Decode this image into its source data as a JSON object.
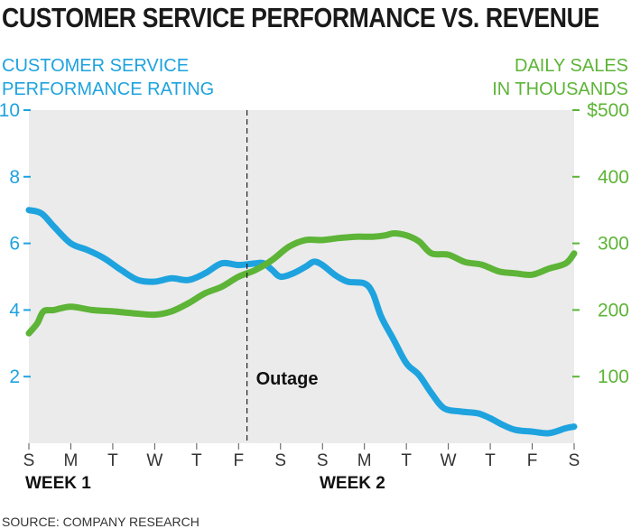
{
  "chart_data": {
    "type": "line",
    "title": "CUSTOMER SERVICE PERFORMANCE VS. REVENUE",
    "source": "SOURCE: COMPANY RESEARCH",
    "x_tick_labels": [
      "S",
      "M",
      "T",
      "W",
      "T",
      "F",
      "S",
      "S",
      "M",
      "T",
      "W",
      "T",
      "F",
      "S"
    ],
    "group_labels": [
      "WEEK 1",
      "WEEK 2"
    ],
    "y_left": {
      "label_lines": [
        "CUSTOMER SERVICE",
        "PERFORMANCE RATING"
      ],
      "range": [
        0,
        10
      ],
      "ticks": [
        2,
        4,
        6,
        8,
        10
      ],
      "tick_labels": [
        "2",
        "4",
        "6",
        "8",
        "10"
      ],
      "color": "#1ea3df"
    },
    "y_right": {
      "label_lines": [
        "DAILY SALES",
        "IN THOUSANDS"
      ],
      "range": [
        0,
        500
      ],
      "ticks": [
        100,
        200,
        300,
        400,
        500
      ],
      "tick_labels": [
        "100",
        "200",
        "300",
        "400",
        "$500"
      ],
      "color": "#5db437"
    },
    "annotation": {
      "text": "Outage",
      "x": 5.2
    },
    "grid": false,
    "series": [
      {
        "axis": "left",
        "color": "#1ea3df",
        "points": [
          [
            0,
            7.0
          ],
          [
            0.3,
            6.9
          ],
          [
            0.6,
            6.5
          ],
          [
            1.0,
            6.0
          ],
          [
            1.4,
            5.8
          ],
          [
            1.8,
            5.55
          ],
          [
            2.2,
            5.2
          ],
          [
            2.6,
            4.9
          ],
          [
            3.0,
            4.85
          ],
          [
            3.4,
            4.95
          ],
          [
            3.8,
            4.9
          ],
          [
            4.2,
            5.1
          ],
          [
            4.6,
            5.4
          ],
          [
            5.0,
            5.35
          ],
          [
            5.4,
            5.4
          ],
          [
            5.6,
            5.4
          ],
          [
            5.8,
            5.2
          ],
          [
            6.0,
            5.0
          ],
          [
            6.3,
            5.1
          ],
          [
            6.6,
            5.3
          ],
          [
            6.8,
            5.45
          ],
          [
            7.0,
            5.35
          ],
          [
            7.3,
            5.05
          ],
          [
            7.6,
            4.85
          ],
          [
            8.0,
            4.8
          ],
          [
            8.2,
            4.5
          ],
          [
            8.4,
            3.8
          ],
          [
            8.7,
            3.1
          ],
          [
            9.0,
            2.4
          ],
          [
            9.3,
            2.05
          ],
          [
            9.6,
            1.5
          ],
          [
            9.9,
            1.05
          ],
          [
            10.3,
            0.95
          ],
          [
            10.7,
            0.9
          ],
          [
            11.0,
            0.75
          ],
          [
            11.3,
            0.55
          ],
          [
            11.6,
            0.4
          ],
          [
            12.0,
            0.35
          ],
          [
            12.4,
            0.3
          ],
          [
            12.8,
            0.45
          ],
          [
            13.0,
            0.5
          ]
        ]
      },
      {
        "axis": "right",
        "color": "#5db437",
        "points": [
          [
            0,
            165
          ],
          [
            0.2,
            180
          ],
          [
            0.35,
            198
          ],
          [
            0.6,
            200
          ],
          [
            1.0,
            205
          ],
          [
            1.5,
            200
          ],
          [
            2.0,
            198
          ],
          [
            2.5,
            195
          ],
          [
            3.0,
            193
          ],
          [
            3.4,
            198
          ],
          [
            3.8,
            210
          ],
          [
            4.2,
            225
          ],
          [
            4.6,
            235
          ],
          [
            5.0,
            250
          ],
          [
            5.4,
            260
          ],
          [
            5.8,
            275
          ],
          [
            6.2,
            295
          ],
          [
            6.6,
            305
          ],
          [
            7.0,
            305
          ],
          [
            7.4,
            308
          ],
          [
            7.8,
            310
          ],
          [
            8.2,
            310
          ],
          [
            8.5,
            312
          ],
          [
            8.7,
            315
          ],
          [
            9.0,
            312
          ],
          [
            9.3,
            303
          ],
          [
            9.6,
            285
          ],
          [
            10.0,
            283
          ],
          [
            10.4,
            272
          ],
          [
            10.8,
            268
          ],
          [
            11.2,
            258
          ],
          [
            11.6,
            255
          ],
          [
            12.0,
            253
          ],
          [
            12.4,
            262
          ],
          [
            12.8,
            270
          ],
          [
            13.0,
            285
          ]
        ]
      }
    ]
  }
}
